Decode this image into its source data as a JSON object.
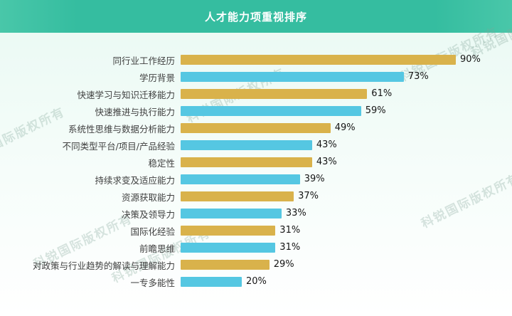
{
  "header": {
    "title": "人才能力项重视排序",
    "bg_color": "#35bda0"
  },
  "watermark": {
    "text": "科锐国际版权所有"
  },
  "chart_data": {
    "type": "bar",
    "orientation": "horizontal",
    "title": "人才能力项重视排序",
    "categories": [
      "同行业工作经历",
      "学历背景",
      "快速学习与知识迁移能力",
      "快速推进与执行能力",
      "系统性思维与数据分析能力",
      "不同类型平台/项目/产品经验",
      "稳定性",
      "持续求变及适应能力",
      "资源获取能力",
      "决策及领导力",
      "国际化经验",
      "前瞻思维",
      "对政策与行业趋势的解读与理解能力",
      "一专多能性"
    ],
    "values": [
      90,
      73,
      61,
      59,
      49,
      43,
      43,
      39,
      37,
      33,
      31,
      31,
      29,
      20
    ],
    "value_labels": [
      "90%",
      "73%",
      "61%",
      "59%",
      "49%",
      "43%",
      "43%",
      "39%",
      "37%",
      "33%",
      "31%",
      "31%",
      "29%",
      "20%"
    ],
    "value_suffix": "%",
    "xlim": [
      0,
      100
    ],
    "grid": false,
    "legend": false,
    "series_colors": [
      "#d9b24b",
      "#55c7e2"
    ],
    "color_note": "bars alternate gold then cyan from top to bottom"
  }
}
